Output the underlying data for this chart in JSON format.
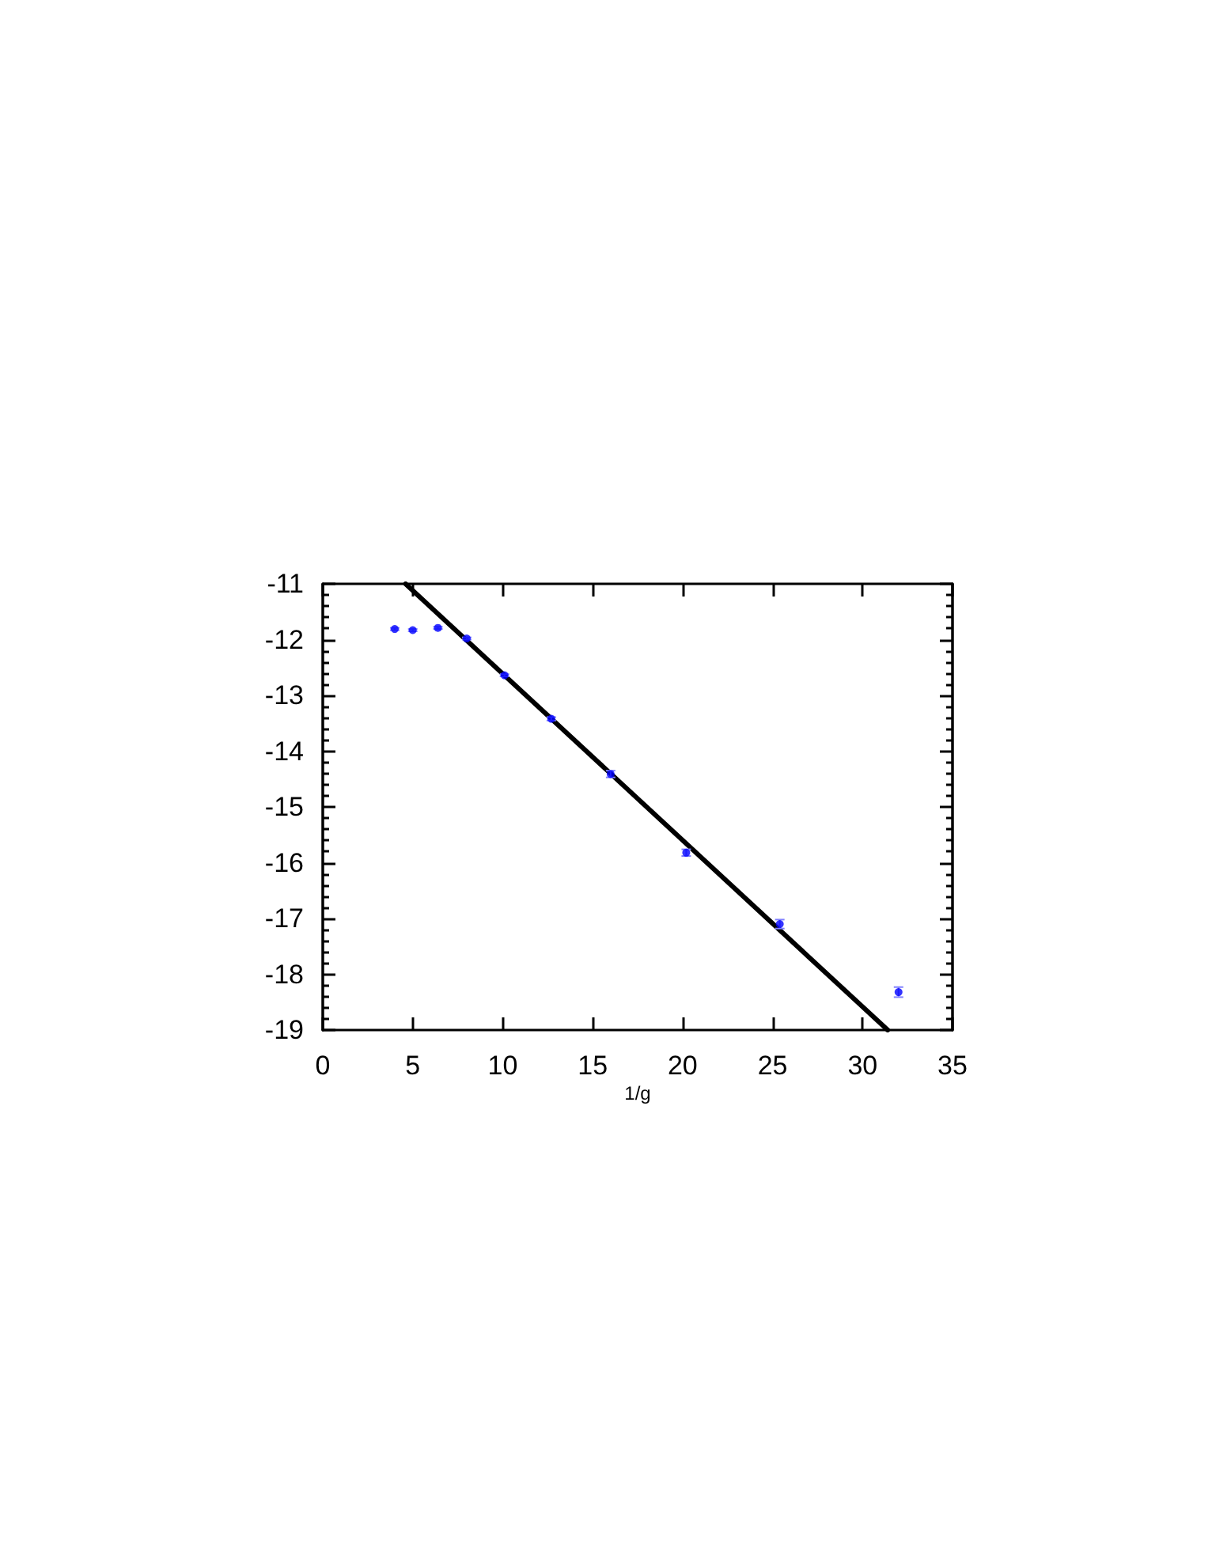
{
  "chart_data": {
    "type": "scatter",
    "xlabel": "1/g",
    "marker": "circle",
    "x": [
      4,
      5,
      6.4,
      8,
      10.1,
      12.7,
      16,
      20.2,
      25.4,
      32
    ],
    "series": [
      {
        "type": "scatter",
        "color": "#0000ff",
        "values": [
          -11.81,
          -11.83,
          -11.79,
          -11.98,
          -12.64,
          -13.42,
          -14.41,
          -15.82,
          -17.1,
          -18.32
        ],
        "errors": [
          0.02,
          0.02,
          0.02,
          0.02,
          0.02,
          0.03,
          0.06,
          0.06,
          0.08,
          0.09
        ]
      },
      {
        "type": "line",
        "color": "#000000",
        "x": [
          4.6,
          31.4
        ],
        "values": [
          -11,
          -19
        ],
        "marker": "none",
        "line_style": "solid"
      }
    ],
    "xlim": [
      0,
      35
    ],
    "ylim": [
      -19,
      -11
    ],
    "xticks": [
      0,
      5,
      10,
      15,
      20,
      25,
      30,
      35
    ],
    "yticks": [
      -19,
      {
        "value": -18.8,
        "label": null
      },
      {
        "value": -18.6,
        "label": null
      },
      {
        "value": -18.4,
        "label": null
      },
      {
        "value": -18.2,
        "label": null
      },
      -18,
      {
        "value": -17.8,
        "label": null
      },
      {
        "value": -17.6,
        "label": null
      },
      {
        "value": -17.4,
        "label": null
      },
      {
        "value": -17.2,
        "label": null
      },
      -17,
      {
        "value": -16.8,
        "label": null
      },
      {
        "value": -16.6,
        "label": null
      },
      {
        "value": -16.4,
        "label": null
      },
      {
        "value": -16.2,
        "label": null
      },
      -16,
      {
        "value": -15.8,
        "label": null
      },
      {
        "value": -15.6,
        "label": null
      },
      {
        "value": -15.4,
        "label": null
      },
      {
        "value": -15.2,
        "label": null
      },
      -15,
      {
        "value": -14.8,
        "label": null
      },
      {
        "value": -14.6,
        "label": null
      },
      {
        "value": -14.4,
        "label": null
      },
      {
        "value": -14.2,
        "label": null
      },
      -14,
      {
        "value": -13.8,
        "label": null
      },
      {
        "value": -13.6,
        "label": null
      },
      {
        "value": -13.4,
        "label": null
      },
      {
        "value": -13.2,
        "label": null
      },
      -13,
      {
        "value": -12.8,
        "label": null
      },
      {
        "value": -12.6,
        "label": null
      },
      {
        "value": -12.4,
        "label": null
      },
      {
        "value": -12.2,
        "label": null
      },
      -12,
      {
        "value": -11.8,
        "label": null
      },
      {
        "value": -11.6,
        "label": null
      },
      {
        "value": -11.4,
        "label": null
      },
      {
        "value": -11.2,
        "label": null
      },
      -11
    ]
  }
}
